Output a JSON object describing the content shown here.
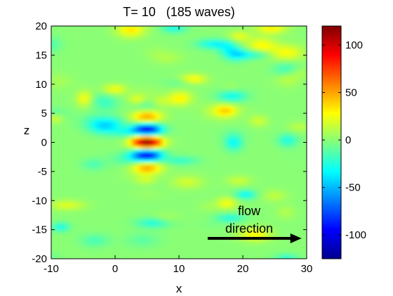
{
  "chart_data": {
    "type": "heatmap",
    "title": "T= 10   (185 waves)",
    "xlabel": "x",
    "ylabel": "z",
    "xlim": [
      -10,
      30
    ],
    "ylim": [
      -20,
      20
    ],
    "xticks": [
      -10,
      0,
      10,
      20,
      30
    ],
    "yticks": [
      -20,
      -15,
      -10,
      -5,
      0,
      5,
      10,
      15,
      20
    ],
    "colorbar": {
      "colormap": "jet",
      "range": [
        -125,
        120
      ],
      "ticks": [
        -100,
        -50,
        0,
        50,
        100
      ]
    },
    "wavepacket": {
      "center_x": 5,
      "center_z": 0,
      "crest_spacing_z": 2.3,
      "peak_amplitude": 118,
      "sign_at_center": 1
    },
    "annotation": {
      "lines": [
        "flow",
        "direction"
      ],
      "arrow_from": [
        14.5,
        -16.5
      ],
      "arrow_to": [
        29.2,
        -16.5
      ]
    }
  }
}
